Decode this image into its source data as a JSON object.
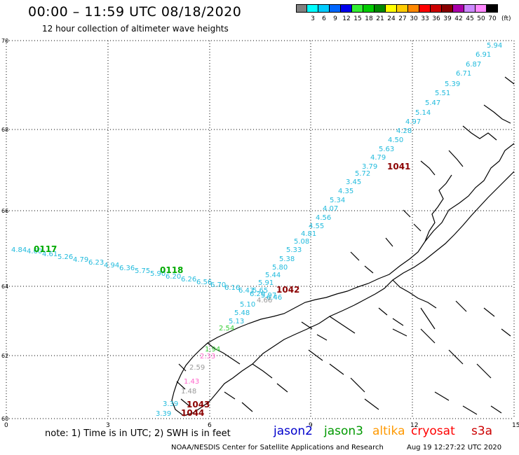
{
  "header": {
    "title": "00:00 – 11:59 UTC 08/18/2020",
    "subtitle": "12 hour collection of altimeter wave heights"
  },
  "scale": {
    "unit": "(ft)",
    "bins": [
      {
        "label": "",
        "color": "#808080"
      },
      {
        "label": "3",
        "color": "#00ffff"
      },
      {
        "label": "6",
        "color": "#00ccff"
      },
      {
        "label": "9",
        "color": "#0066ff"
      },
      {
        "label": "12",
        "color": "#0000ee"
      },
      {
        "label": "15",
        "color": "#33ee33"
      },
      {
        "label": "18",
        "color": "#00cc00"
      },
      {
        "label": "21",
        "color": "#008800"
      },
      {
        "label": "24",
        "color": "#ffff00"
      },
      {
        "label": "27",
        "color": "#ffcc00"
      },
      {
        "label": "30",
        "color": "#ff8800"
      },
      {
        "label": "33",
        "color": "#ff0000"
      },
      {
        "label": "36",
        "color": "#cc0000"
      },
      {
        "label": "39",
        "color": "#880000"
      },
      {
        "label": "42",
        "color": "#aa00aa"
      },
      {
        "label": "45",
        "color": "#cc88ff"
      },
      {
        "label": "50",
        "color": "#ff88ff"
      },
      {
        "label": "70",
        "color": "#000000"
      }
    ]
  },
  "axes": {
    "x_ticks": [
      "0",
      "3",
      "6",
      "9",
      "12",
      "15"
    ],
    "y_ticks": [
      "70",
      "68",
      "66",
      "64",
      "62",
      "60"
    ]
  },
  "tracks": [
    {
      "pass": "0117",
      "pass_color": "#00aa00",
      "labels": [
        "4.84",
        "4.60",
        "4.61",
        "5.26",
        "4.79",
        "6.23",
        "4.94",
        "6.36",
        "5.75",
        "5.90",
        "6.20",
        "6.26",
        "6.56",
        "6.70",
        "6.16",
        "6.43",
        "6.20",
        "6.46"
      ]
    },
    {
      "pass": "0118",
      "pass_color": "#00aa00",
      "labels": []
    },
    {
      "pass": "1041",
      "pass_color": "#8b0000",
      "labels": [
        "5.94",
        "6.91",
        "6.87",
        "6.71",
        "5.39",
        "5.51",
        "5.47",
        "5.14",
        "4.97",
        "4.28",
        "4.50",
        "5.63",
        "4.79",
        "3.79",
        "5.72",
        "3.45",
        "4.35",
        "5.34",
        "4.07",
        "4.56",
        "4.55",
        "4.81",
        "5.08",
        "5.33",
        "5.38",
        "5.80",
        "5.44",
        "5.91",
        "5.65",
        "5.97"
      ]
    },
    {
      "pass": "1042",
      "pass_color": "#8b0000",
      "labels": [
        "5.10",
        "5.48",
        "5.13"
      ]
    },
    {
      "pass": "1043",
      "pass_color": "#8b0000",
      "labels": [
        "3.39",
        "3.39"
      ]
    },
    {
      "pass": "1044",
      "pass_color": "#8b0000",
      "labels": []
    }
  ],
  "coast_extra_labels": {
    "green": [
      "2.54",
      "1.94"
    ],
    "pink": [
      "2.33",
      "1.43"
    ],
    "gray": [
      "2.59",
      "1.48",
      "4.66"
    ]
  },
  "footer": {
    "note": "note: 1) Time is in UTC; 2) SWH is in feet",
    "satellites": [
      {
        "name": "jason2",
        "color": "#0000cc"
      },
      {
        "name": "jason3",
        "color": "#009900"
      },
      {
        "name": "altika",
        "color": "#ff9900"
      },
      {
        "name": "cryosat",
        "color": "#ff0000"
      },
      {
        "name": "s3a",
        "color": "#cc0000"
      }
    ],
    "credit": "NOAA/NESDIS Center for Satellite Applications and Research",
    "timestamp": "Aug 19 12:27:22 UTC 2020"
  },
  "colors": {
    "cyan": "#22bbdd",
    "green": "#33cc33",
    "darkred": "#8b0000",
    "coast": "#000000"
  }
}
